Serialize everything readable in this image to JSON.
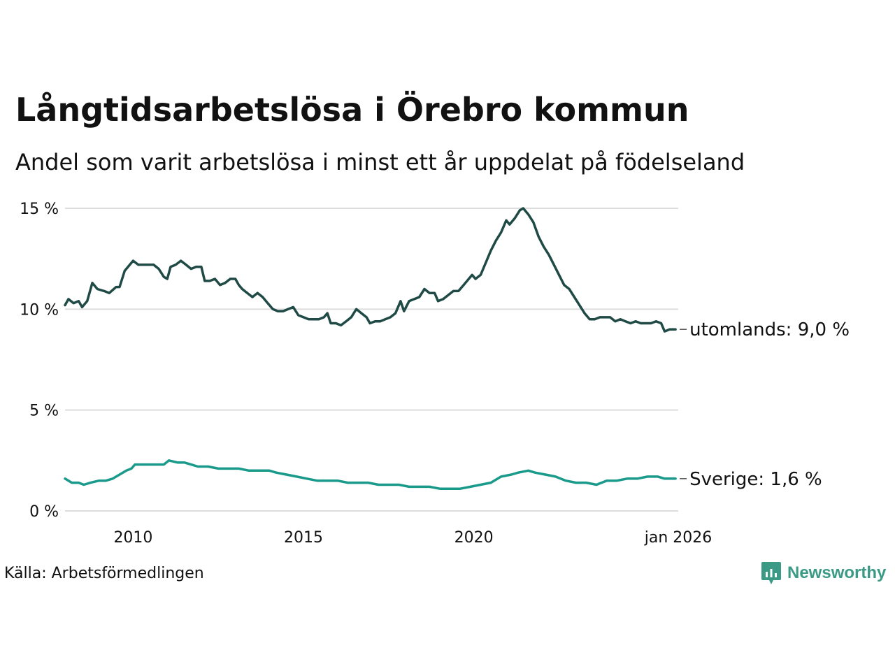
{
  "chart_data": {
    "type": "line",
    "title": "Långtidsarbetslösa i Örebro kommun",
    "subtitle": "Andel som varit arbetslösa i minst ett år uppdelat på födelseland",
    "source": "Källa: Arbetsförmedlingen",
    "brand": "Newsworthy",
    "xlim": [
      2008.0,
      2026.0
    ],
    "ylim": [
      0,
      15
    ],
    "y_ticks": [
      0,
      5,
      10,
      15
    ],
    "y_tick_labels": [
      "0 %",
      "5 %",
      "10 %",
      "15 %"
    ],
    "x_ticks": [
      2010,
      2015,
      2020,
      2026
    ],
    "x_tick_labels": [
      "2010",
      "2015",
      "2020",
      "jan 2026"
    ],
    "grid": true,
    "colors": {
      "utomlands": "#1f4a45",
      "sverige": "#1a9a8a",
      "grid": "#dddddd",
      "brand": "#3a9a86"
    },
    "series": [
      {
        "name": "utomlands",
        "end_label": "utomlands: 9,0 %",
        "points": [
          [
            2008.0,
            10.2
          ],
          [
            2008.1,
            10.5
          ],
          [
            2008.25,
            10.3
          ],
          [
            2008.4,
            10.4
          ],
          [
            2008.5,
            10.1
          ],
          [
            2008.65,
            10.4
          ],
          [
            2008.8,
            11.3
          ],
          [
            2008.95,
            11.0
          ],
          [
            2009.15,
            10.9
          ],
          [
            2009.3,
            10.8
          ],
          [
            2009.5,
            11.1
          ],
          [
            2009.6,
            11.1
          ],
          [
            2009.75,
            11.9
          ],
          [
            2009.9,
            12.2
          ],
          [
            2010.0,
            12.4
          ],
          [
            2010.15,
            12.2
          ],
          [
            2010.3,
            12.2
          ],
          [
            2010.45,
            12.2
          ],
          [
            2010.6,
            12.2
          ],
          [
            2010.75,
            12.0
          ],
          [
            2010.9,
            11.6
          ],
          [
            2011.0,
            11.5
          ],
          [
            2011.1,
            12.1
          ],
          [
            2011.25,
            12.2
          ],
          [
            2011.4,
            12.4
          ],
          [
            2011.55,
            12.2
          ],
          [
            2011.7,
            12.0
          ],
          [
            2011.85,
            12.1
          ],
          [
            2012.0,
            12.1
          ],
          [
            2012.1,
            11.4
          ],
          [
            2012.25,
            11.4
          ],
          [
            2012.4,
            11.5
          ],
          [
            2012.55,
            11.2
          ],
          [
            2012.7,
            11.3
          ],
          [
            2012.85,
            11.5
          ],
          [
            2013.0,
            11.5
          ],
          [
            2013.1,
            11.2
          ],
          [
            2013.2,
            11.0
          ],
          [
            2013.35,
            10.8
          ],
          [
            2013.5,
            10.6
          ],
          [
            2013.65,
            10.8
          ],
          [
            2013.8,
            10.6
          ],
          [
            2013.95,
            10.3
          ],
          [
            2014.1,
            10.0
          ],
          [
            2014.25,
            9.9
          ],
          [
            2014.4,
            9.9
          ],
          [
            2014.55,
            10.0
          ],
          [
            2014.7,
            10.1
          ],
          [
            2014.85,
            9.7
          ],
          [
            2015.0,
            9.6
          ],
          [
            2015.15,
            9.5
          ],
          [
            2015.3,
            9.5
          ],
          [
            2015.45,
            9.5
          ],
          [
            2015.6,
            9.6
          ],
          [
            2015.7,
            9.8
          ],
          [
            2015.8,
            9.3
          ],
          [
            2015.95,
            9.3
          ],
          [
            2016.1,
            9.2
          ],
          [
            2016.25,
            9.4
          ],
          [
            2016.4,
            9.6
          ],
          [
            2016.55,
            10.0
          ],
          [
            2016.7,
            9.8
          ],
          [
            2016.85,
            9.6
          ],
          [
            2016.95,
            9.3
          ],
          [
            2017.1,
            9.4
          ],
          [
            2017.25,
            9.4
          ],
          [
            2017.4,
            9.5
          ],
          [
            2017.55,
            9.6
          ],
          [
            2017.7,
            9.8
          ],
          [
            2017.85,
            10.4
          ],
          [
            2017.95,
            9.9
          ],
          [
            2018.1,
            10.4
          ],
          [
            2018.25,
            10.5
          ],
          [
            2018.4,
            10.6
          ],
          [
            2018.55,
            11.0
          ],
          [
            2018.7,
            10.8
          ],
          [
            2018.85,
            10.8
          ],
          [
            2018.95,
            10.4
          ],
          [
            2019.1,
            10.5
          ],
          [
            2019.25,
            10.7
          ],
          [
            2019.4,
            10.9
          ],
          [
            2019.55,
            10.9
          ],
          [
            2019.7,
            11.2
          ],
          [
            2019.85,
            11.5
          ],
          [
            2019.95,
            11.7
          ],
          [
            2020.05,
            11.5
          ],
          [
            2020.2,
            11.7
          ],
          [
            2020.35,
            12.3
          ],
          [
            2020.5,
            12.9
          ],
          [
            2020.65,
            13.4
          ],
          [
            2020.8,
            13.8
          ],
          [
            2020.95,
            14.4
          ],
          [
            2021.05,
            14.2
          ],
          [
            2021.2,
            14.5
          ],
          [
            2021.35,
            14.9
          ],
          [
            2021.45,
            15.0
          ],
          [
            2021.6,
            14.7
          ],
          [
            2021.75,
            14.3
          ],
          [
            2021.9,
            13.6
          ],
          [
            2022.05,
            13.1
          ],
          [
            2022.2,
            12.7
          ],
          [
            2022.35,
            12.2
          ],
          [
            2022.5,
            11.7
          ],
          [
            2022.65,
            11.2
          ],
          [
            2022.8,
            11.0
          ],
          [
            2022.95,
            10.6
          ],
          [
            2023.1,
            10.2
          ],
          [
            2023.25,
            9.8
          ],
          [
            2023.4,
            9.5
          ],
          [
            2023.55,
            9.5
          ],
          [
            2023.7,
            9.6
          ],
          [
            2023.85,
            9.6
          ],
          [
            2024.0,
            9.6
          ],
          [
            2024.15,
            9.4
          ],
          [
            2024.3,
            9.5
          ],
          [
            2024.45,
            9.4
          ],
          [
            2024.6,
            9.3
          ],
          [
            2024.75,
            9.4
          ],
          [
            2024.9,
            9.3
          ],
          [
            2025.05,
            9.3
          ],
          [
            2025.2,
            9.3
          ],
          [
            2025.35,
            9.4
          ],
          [
            2025.5,
            9.3
          ],
          [
            2025.6,
            8.9
          ],
          [
            2025.75,
            9.0
          ],
          [
            2025.92,
            9.0
          ]
        ]
      },
      {
        "name": "sverige",
        "end_label": "Sverige: 1,6 %",
        "points": [
          [
            2008.0,
            1.6
          ],
          [
            2008.2,
            1.4
          ],
          [
            2008.4,
            1.4
          ],
          [
            2008.55,
            1.3
          ],
          [
            2008.75,
            1.4
          ],
          [
            2009.0,
            1.5
          ],
          [
            2009.2,
            1.5
          ],
          [
            2009.4,
            1.6
          ],
          [
            2009.6,
            1.8
          ],
          [
            2009.8,
            2.0
          ],
          [
            2009.95,
            2.1
          ],
          [
            2010.05,
            2.3
          ],
          [
            2010.3,
            2.3
          ],
          [
            2010.6,
            2.3
          ],
          [
            2010.9,
            2.3
          ],
          [
            2011.05,
            2.5
          ],
          [
            2011.3,
            2.4
          ],
          [
            2011.5,
            2.4
          ],
          [
            2011.7,
            2.3
          ],
          [
            2011.9,
            2.2
          ],
          [
            2012.2,
            2.2
          ],
          [
            2012.5,
            2.1
          ],
          [
            2012.8,
            2.1
          ],
          [
            2013.1,
            2.1
          ],
          [
            2013.4,
            2.0
          ],
          [
            2013.7,
            2.0
          ],
          [
            2014.0,
            2.0
          ],
          [
            2014.2,
            1.9
          ],
          [
            2014.5,
            1.8
          ],
          [
            2014.8,
            1.7
          ],
          [
            2015.1,
            1.6
          ],
          [
            2015.4,
            1.5
          ],
          [
            2015.7,
            1.5
          ],
          [
            2016.0,
            1.5
          ],
          [
            2016.3,
            1.4
          ],
          [
            2016.6,
            1.4
          ],
          [
            2016.9,
            1.4
          ],
          [
            2017.2,
            1.3
          ],
          [
            2017.5,
            1.3
          ],
          [
            2017.8,
            1.3
          ],
          [
            2018.1,
            1.2
          ],
          [
            2018.4,
            1.2
          ],
          [
            2018.7,
            1.2
          ],
          [
            2019.0,
            1.1
          ],
          [
            2019.3,
            1.1
          ],
          [
            2019.6,
            1.1
          ],
          [
            2019.9,
            1.2
          ],
          [
            2020.2,
            1.3
          ],
          [
            2020.5,
            1.4
          ],
          [
            2020.8,
            1.7
          ],
          [
            2021.1,
            1.8
          ],
          [
            2021.3,
            1.9
          ],
          [
            2021.6,
            2.0
          ],
          [
            2021.8,
            1.9
          ],
          [
            2022.1,
            1.8
          ],
          [
            2022.4,
            1.7
          ],
          [
            2022.7,
            1.5
          ],
          [
            2023.0,
            1.4
          ],
          [
            2023.3,
            1.4
          ],
          [
            2023.6,
            1.3
          ],
          [
            2023.9,
            1.5
          ],
          [
            2024.2,
            1.5
          ],
          [
            2024.5,
            1.6
          ],
          [
            2024.8,
            1.6
          ],
          [
            2025.1,
            1.7
          ],
          [
            2025.4,
            1.7
          ],
          [
            2025.6,
            1.6
          ],
          [
            2025.92,
            1.6
          ]
        ]
      }
    ]
  }
}
